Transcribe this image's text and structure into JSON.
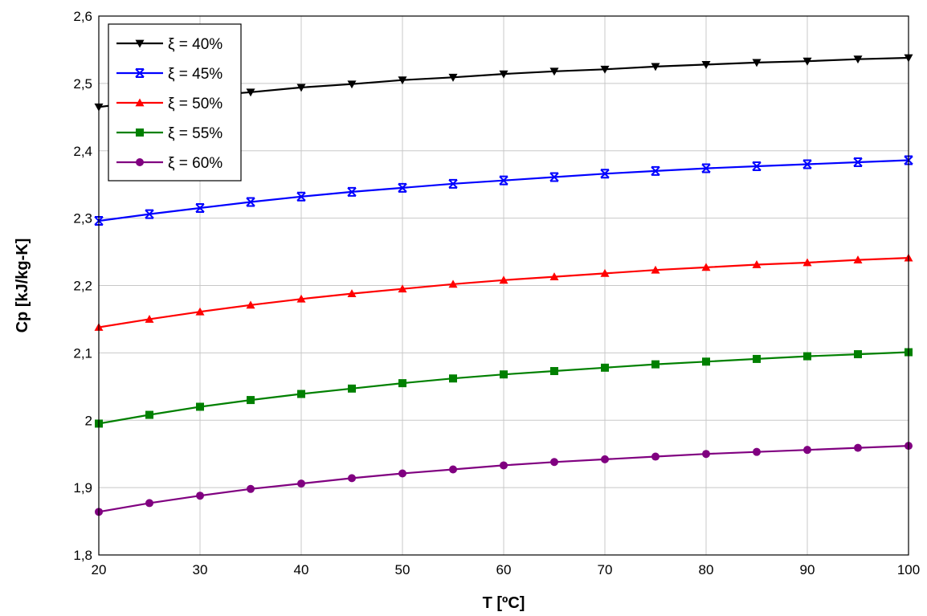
{
  "chart_data": {
    "type": "line",
    "title": "",
    "xlabel": "T [ºC]",
    "ylabel": "Cp [kJ/kg-K]",
    "xlim": [
      20,
      100
    ],
    "ylim": [
      1.8,
      2.6
    ],
    "grid": true,
    "legend_position": "top-left",
    "x_ticks": [
      20,
      30,
      40,
      50,
      60,
      70,
      80,
      90,
      100
    ],
    "x_tick_labels": [
      "20",
      "30",
      "40",
      "50",
      "60",
      "70",
      "80",
      "90",
      "100"
    ],
    "y_ticks": [
      1.8,
      1.9,
      2.0,
      2.1,
      2.2,
      2.3,
      2.4,
      2.5,
      2.6
    ],
    "y_tick_labels": [
      "1,8",
      "1,9",
      "2",
      "2,1",
      "2,2",
      "2,3",
      "2,4",
      "2,5",
      "2,6"
    ],
    "x": [
      20,
      25,
      30,
      35,
      40,
      45,
      50,
      55,
      60,
      65,
      70,
      75,
      80,
      85,
      90,
      95,
      100
    ],
    "series": [
      {
        "name": "ξ = 40%",
        "color": "#000000",
        "marker": "triangle-down",
        "values": [
          2.465,
          2.474,
          2.481,
          2.487,
          2.494,
          2.499,
          2.505,
          2.509,
          2.514,
          2.518,
          2.521,
          2.525,
          2.528,
          2.531,
          2.533,
          2.536,
          2.538
        ]
      },
      {
        "name": "ξ = 45%",
        "color": "#0000ff",
        "marker": "x-bar",
        "values": [
          2.296,
          2.306,
          2.315,
          2.324,
          2.332,
          2.339,
          2.345,
          2.351,
          2.356,
          2.361,
          2.366,
          2.37,
          2.374,
          2.377,
          2.38,
          2.383,
          2.386
        ]
      },
      {
        "name": "ξ = 50%",
        "color": "#ff0000",
        "marker": "triangle-up",
        "values": [
          2.138,
          2.15,
          2.161,
          2.171,
          2.18,
          2.188,
          2.195,
          2.202,
          2.208,
          2.213,
          2.218,
          2.223,
          2.227,
          2.231,
          2.234,
          2.238,
          2.241
        ]
      },
      {
        "name": "ξ = 55%",
        "color": "#008000",
        "marker": "square",
        "values": [
          1.995,
          2.008,
          2.02,
          2.03,
          2.039,
          2.047,
          2.055,
          2.062,
          2.068,
          2.073,
          2.078,
          2.083,
          2.087,
          2.091,
          2.095,
          2.098,
          2.101
        ]
      },
      {
        "name": "ξ = 60%",
        "color": "#800080",
        "marker": "circle",
        "values": [
          1.864,
          1.877,
          1.888,
          1.898,
          1.906,
          1.914,
          1.921,
          1.927,
          1.933,
          1.938,
          1.942,
          1.946,
          1.95,
          1.953,
          1.956,
          1.959,
          1.962
        ]
      }
    ]
  }
}
